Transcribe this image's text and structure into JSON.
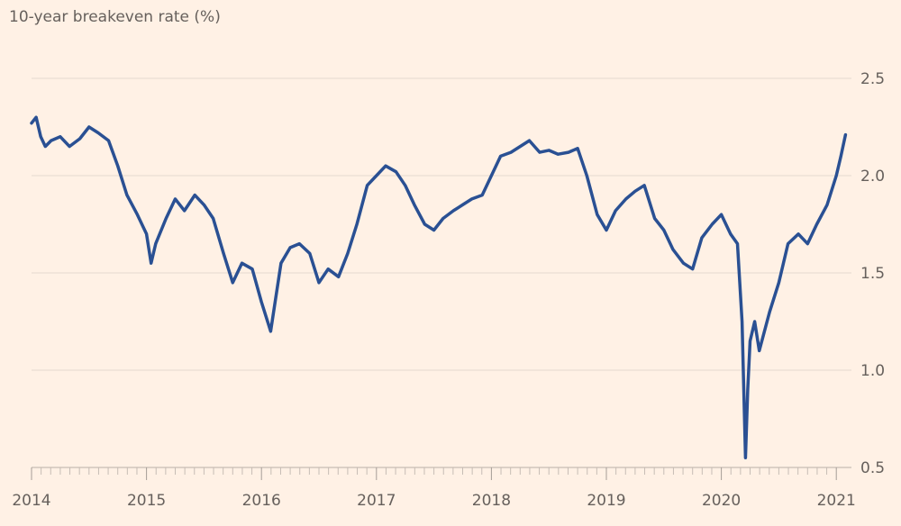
{
  "chart_data": {
    "type": "line",
    "title": "10-year breakeven rate (%)",
    "x": [
      2014.0,
      2014.04,
      2014.08,
      2014.12,
      2014.17,
      2014.25,
      2014.33,
      2014.42,
      2014.5,
      2014.58,
      2014.67,
      2014.75,
      2014.83,
      2014.92,
      2015.0,
      2015.04,
      2015.08,
      2015.17,
      2015.25,
      2015.33,
      2015.42,
      2015.5,
      2015.58,
      2015.67,
      2015.75,
      2015.83,
      2015.92,
      2016.0,
      2016.08,
      2016.17,
      2016.25,
      2016.33,
      2016.42,
      2016.5,
      2016.58,
      2016.67,
      2016.75,
      2016.83,
      2016.92,
      2017.0,
      2017.08,
      2017.17,
      2017.25,
      2017.33,
      2017.42,
      2017.5,
      2017.58,
      2017.67,
      2017.75,
      2017.83,
      2017.92,
      2018.0,
      2018.08,
      2018.17,
      2018.25,
      2018.33,
      2018.42,
      2018.5,
      2018.58,
      2018.67,
      2018.75,
      2018.83,
      2018.92,
      2019.0,
      2019.08,
      2019.17,
      2019.25,
      2019.33,
      2019.42,
      2019.5,
      2019.58,
      2019.67,
      2019.75,
      2019.83,
      2019.92,
      2020.0,
      2020.08,
      2020.14,
      2020.18,
      2020.21,
      2020.23,
      2020.25,
      2020.29,
      2020.33,
      2020.42,
      2020.5,
      2020.58,
      2020.67,
      2020.75,
      2020.83,
      2020.92,
      2021.0,
      2021.04,
      2021.08
    ],
    "series": [
      {
        "name": "10-year breakeven rate",
        "color": "#2a5093",
        "values": [
          2.27,
          2.3,
          2.2,
          2.15,
          2.18,
          2.2,
          2.15,
          2.19,
          2.25,
          2.22,
          2.18,
          2.05,
          1.9,
          1.8,
          1.7,
          1.55,
          1.65,
          1.78,
          1.88,
          1.82,
          1.9,
          1.85,
          1.78,
          1.6,
          1.45,
          1.55,
          1.52,
          1.35,
          1.2,
          1.55,
          1.63,
          1.65,
          1.6,
          1.45,
          1.52,
          1.48,
          1.6,
          1.75,
          1.95,
          2.0,
          2.05,
          2.02,
          1.95,
          1.85,
          1.75,
          1.72,
          1.78,
          1.82,
          1.85,
          1.88,
          1.9,
          2.0,
          2.1,
          2.12,
          2.15,
          2.18,
          2.12,
          2.13,
          2.11,
          2.12,
          2.14,
          2.0,
          1.8,
          1.72,
          1.82,
          1.88,
          1.92,
          1.95,
          1.78,
          1.72,
          1.62,
          1.55,
          1.52,
          1.68,
          1.75,
          1.8,
          1.7,
          1.65,
          1.25,
          0.55,
          0.9,
          1.15,
          1.25,
          1.1,
          1.3,
          1.45,
          1.65,
          1.7,
          1.65,
          1.75,
          1.85,
          2.0,
          2.1,
          2.21
        ]
      }
    ],
    "xlim": [
      2014,
      2021.08
    ],
    "xticks": [
      2014,
      2015,
      2016,
      2017,
      2018,
      2019,
      2020,
      2021
    ],
    "ylim": [
      0.5,
      2.6
    ],
    "yticks": [
      {
        "value": 0.5,
        "label": "0.5"
      },
      {
        "value": 1.0,
        "label": "1.0"
      },
      {
        "value": 1.5,
        "label": "1.5"
      },
      {
        "value": 2.0,
        "label": "2.0"
      },
      {
        "value": 2.5,
        "label": "2.5"
      }
    ],
    "grid": true
  }
}
